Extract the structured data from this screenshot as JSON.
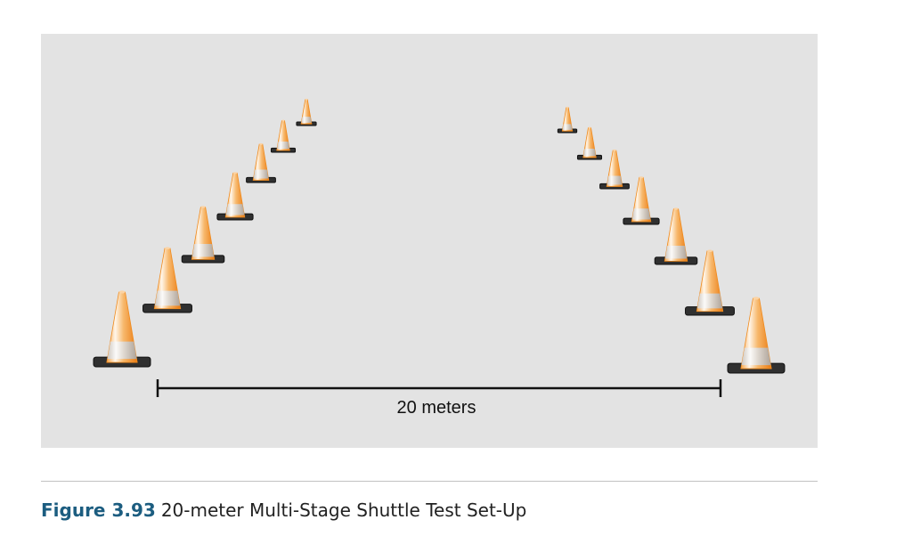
{
  "diagram": {
    "background_color": "#e3e3e3",
    "cone_color": "#f08a1c",
    "cone_base_color": "#303030",
    "measure_label": "20 meters"
  },
  "caption": {
    "number": "Figure 3.93",
    "text": "20-meter Multi-Stage Shuttle Test Set-Up"
  }
}
